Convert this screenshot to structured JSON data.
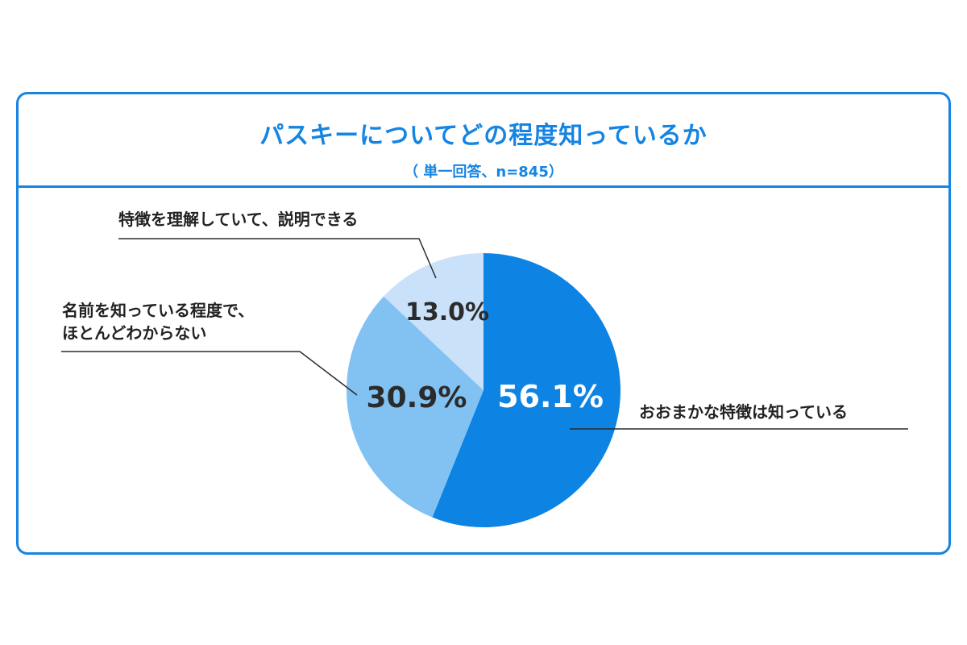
{
  "title": "パスキーについてどの程度知っているか",
  "subtitle": "（ 単一回答、n=845）",
  "chart_data": {
    "type": "pie",
    "title": "パスキーについてどの程度知っているか",
    "subtitle": "（ 単一回答、n=845）",
    "slices": [
      {
        "label": "おおまかな特徴は知っている",
        "value": 56.1,
        "display": "56.1%",
        "color": "#0d83e3",
        "text_color": "#ffffff"
      },
      {
        "label_lines": [
          "名前を知っている程度で、",
          "ほとんどわからない"
        ],
        "value": 30.9,
        "display": "30.9%",
        "color": "#82c2f2",
        "text_color": "#2b2b2b"
      },
      {
        "label": "特徴を理解していて、説明できる",
        "value": 13.0,
        "display": "13.0%",
        "color": "#c9e1f9",
        "text_color": "#2b2b2b"
      }
    ],
    "start_angle": "12 o'clock",
    "direction": "clockwise"
  }
}
